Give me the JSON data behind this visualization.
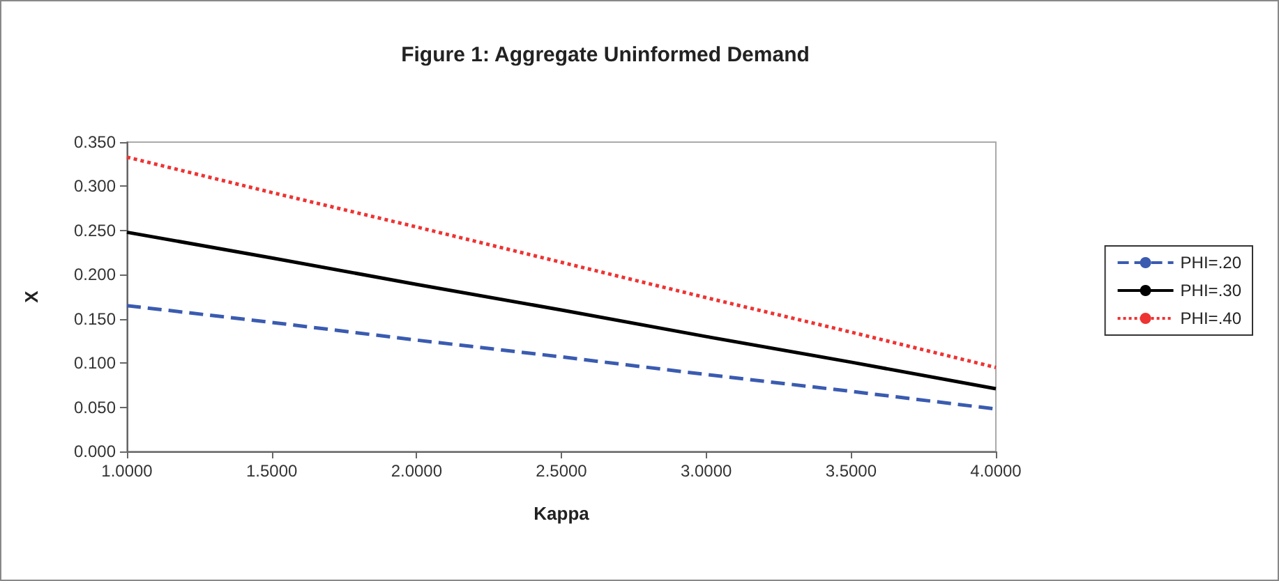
{
  "chart_data": {
    "type": "line",
    "title": "Figure 1: Aggregate Uninformed Demand",
    "xlabel": "Kappa",
    "ylabel": "X",
    "x": [
      1,
      1.5,
      2,
      2.5,
      3,
      3.5,
      4
    ],
    "series": [
      {
        "name": "PHI=.20",
        "color": "#3a5bb0",
        "line_style": "dashed",
        "values": [
          0.165,
          0.146,
          0.126,
          0.107,
          0.087,
          0.068,
          0.048
        ]
      },
      {
        "name": "PHI=.30",
        "color": "#000000",
        "line_style": "solid",
        "values": [
          0.248,
          0.219,
          0.189,
          0.16,
          0.13,
          0.101,
          0.071
        ]
      },
      {
        "name": "PHI=.40",
        "color": "#ee3333",
        "line_style": "dotted",
        "values": [
          0.333,
          0.293,
          0.254,
          0.214,
          0.174,
          0.135,
          0.095
        ]
      }
    ],
    "xlim": [
      1,
      4
    ],
    "xticks": [
      {
        "value": 1,
        "label": "1.0000"
      },
      {
        "value": 1.5,
        "label": "1.5000"
      },
      {
        "value": 2,
        "label": "2.0000"
      },
      {
        "value": 2.5,
        "label": "2.5000"
      },
      {
        "value": 3,
        "label": "3.0000"
      },
      {
        "value": 3.5,
        "label": "3.5000"
      },
      {
        "value": 4,
        "label": "4.0000"
      }
    ],
    "ylim": [
      0,
      0.35
    ],
    "yticks": [
      {
        "value": 0,
        "label": "0.000"
      },
      {
        "value": 0.05,
        "label": "0.050"
      },
      {
        "value": 0.1,
        "label": "0.100"
      },
      {
        "value": 0.15,
        "label": "0.150"
      },
      {
        "value": 0.2,
        "label": "0.200"
      },
      {
        "value": 0.25,
        "label": "0.250"
      },
      {
        "value": 0.3,
        "label": "0.300"
      },
      {
        "value": 0.35,
        "label": "0.350"
      }
    ],
    "grid": false,
    "legend": "right",
    "marker": "none"
  }
}
